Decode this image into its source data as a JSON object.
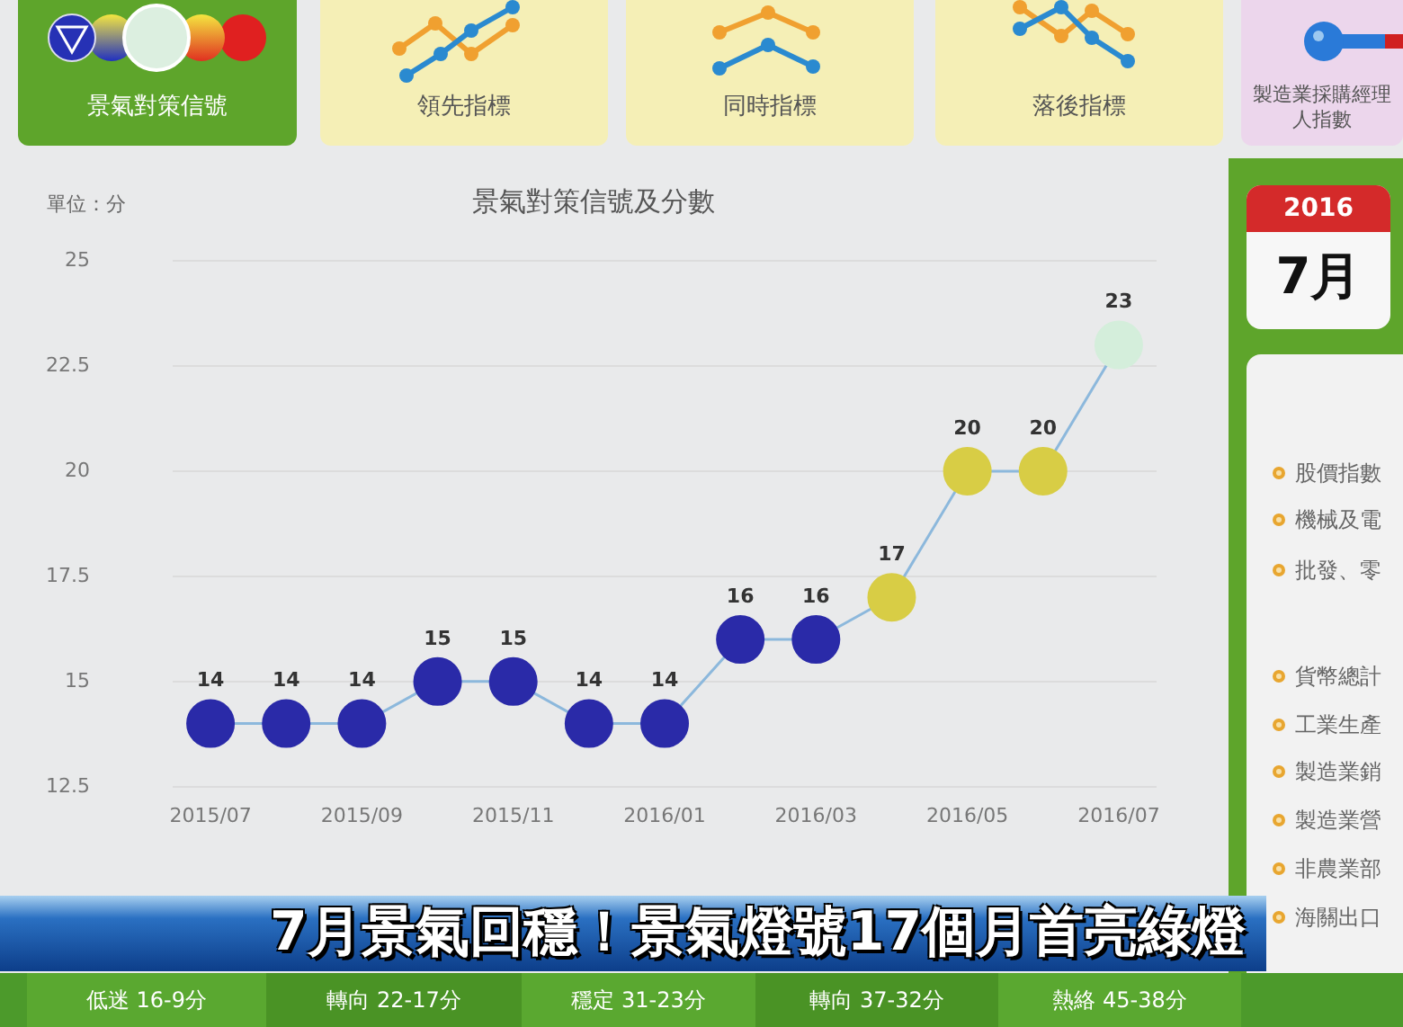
{
  "chart_data": {
    "type": "line",
    "title": "景氣對策信號及分數",
    "ylabel": "單位：分",
    "categories": [
      "2015/07",
      null,
      "2015/09",
      null,
      "2015/11",
      null,
      "2016/01",
      null,
      "2016/03",
      null,
      "2016/05",
      null,
      "2016/07"
    ],
    "series": [
      {
        "color": "#8cb8dc",
        "colors": [
          "#2a2aa8",
          "#2a2aa8",
          "#2a2aa8",
          "#2a2aa8",
          "#2a2aa8",
          "#2a2aa8",
          "#2a2aa8",
          "#2a2aa8",
          "#2a2aa8",
          "#d8cd45",
          "#d8cd45",
          "#d8cd45",
          "#d4eedb"
        ],
        "values": [
          14,
          14,
          14,
          15,
          15,
          14,
          14,
          16,
          16,
          17,
          20,
          20,
          23
        ]
      }
    ],
    "ylim": [
      12.5,
      25
    ],
    "yticks": [
      12.5,
      15,
      17.5,
      20,
      22.5,
      25
    ],
    "grid": "y",
    "marker": "circle",
    "data_labels": true,
    "annotations": [
      "景氣對策信號",
      "領先指標",
      "同時指標",
      "落後指標",
      "製造業採購經理人指數",
      "2016",
      "7月",
      "股價指數",
      "機械及電",
      "批發、零",
      "貨幣總計",
      "工業生產",
      "製造業銷",
      "製造業營",
      "非農業部",
      "海關出口",
      "7月景氣回穩！景氣燈號17個月首亮綠燈",
      "低迷 16-9分",
      "轉向 22-17分",
      "穩定 31-23分",
      "轉向 37-32分",
      "熱絡 45-38分"
    ]
  }
}
